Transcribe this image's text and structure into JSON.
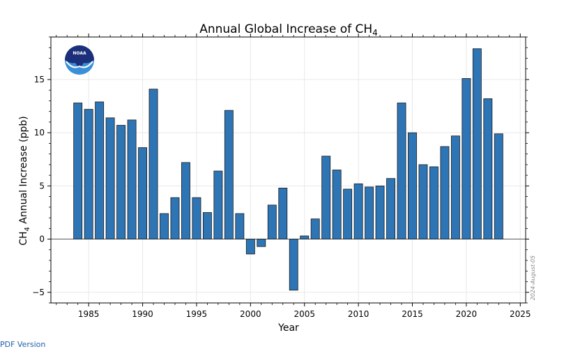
{
  "chart_data": {
    "type": "bar",
    "title_prefix": "Annual Global Increase of CH",
    "title_sub": "4",
    "xlabel": "Year",
    "ylabel_prefix": "CH",
    "ylabel_sub": "4",
    "ylabel_suffix": " Annual Increase (ppb)",
    "xlim": [
      1981.5,
      2025.5
    ],
    "ylim": [
      -6,
      19
    ],
    "xticks": [
      1985,
      1990,
      1995,
      2000,
      2005,
      2010,
      2015,
      2020,
      2025
    ],
    "yticks": [
      -5,
      0,
      5,
      10,
      15
    ],
    "ytick_labels": [
      "−5",
      "0",
      "5",
      "10",
      "15"
    ],
    "x": [
      1984,
      1985,
      1986,
      1987,
      1988,
      1989,
      1990,
      1991,
      1992,
      1993,
      1994,
      1995,
      1996,
      1997,
      1998,
      1999,
      2000,
      2001,
      2002,
      2003,
      2004,
      2005,
      2006,
      2007,
      2008,
      2009,
      2010,
      2011,
      2012,
      2013,
      2014,
      2015,
      2016,
      2017,
      2018,
      2019,
      2020,
      2021,
      2022,
      2023
    ],
    "values": [
      12.8,
      12.2,
      12.9,
      11.4,
      10.7,
      11.2,
      8.6,
      14.1,
      2.4,
      3.9,
      7.2,
      3.9,
      2.5,
      6.4,
      12.1,
      2.4,
      -1.4,
      -0.7,
      3.2,
      4.8,
      -4.8,
      0.3,
      1.9,
      7.8,
      6.5,
      4.7,
      5.2,
      4.9,
      5.0,
      5.7,
      12.8,
      10.0,
      7.0,
      6.8,
      8.7,
      9.7,
      15.1,
      17.9,
      13.2,
      9.9
    ],
    "bar_color": "#2e75b6",
    "grid": true,
    "date_stamp": "2024-August-05"
  },
  "logo": {
    "text": "NOAA"
  },
  "footer": {
    "link_text": "PDF Version"
  },
  "colors": {
    "bar": "#2e75b6",
    "bar_edge": "#1a1a1a",
    "grid": "#e8e8e8",
    "logo_dark": "#1b2f7a",
    "logo_light": "#3a8fd6"
  }
}
